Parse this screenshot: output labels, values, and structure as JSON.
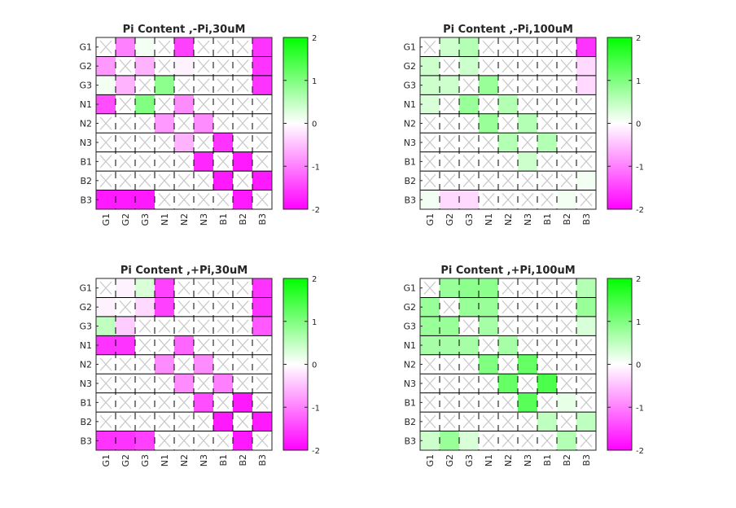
{
  "chart_data": [
    {
      "type": "heatmap",
      "title": "Pi Content ,-Pi,30uM",
      "rows": [
        "G1",
        "G2",
        "G3",
        "N1",
        "N2",
        "N3",
        "B1",
        "B2",
        "B3"
      ],
      "cols": [
        "G1",
        "G2",
        "G3",
        "N1",
        "N2",
        "N3",
        "B1",
        "B2",
        "B3"
      ],
      "clim": [
        -2,
        2
      ],
      "colorbar_ticks": [
        "2",
        "1",
        "0",
        "-1",
        "-2"
      ],
      "values": [
        [
          null,
          -1.0,
          0.1,
          null,
          -1.5,
          null,
          null,
          null,
          -1.6
        ],
        [
          -0.8,
          null,
          -0.6,
          null,
          -0.1,
          null,
          null,
          null,
          -1.6
        ],
        [
          0.1,
          -0.6,
          null,
          0.9,
          null,
          null,
          null,
          null,
          -1.6
        ],
        [
          -1.4,
          null,
          1.0,
          null,
          -0.9,
          null,
          null,
          null,
          null
        ],
        [
          null,
          null,
          null,
          -0.8,
          null,
          -0.9,
          null,
          null,
          null
        ],
        [
          null,
          null,
          null,
          null,
          -0.6,
          null,
          -1.6,
          null,
          null
        ],
        [
          null,
          null,
          null,
          null,
          null,
          -1.7,
          null,
          -1.8,
          null
        ],
        [
          null,
          null,
          null,
          null,
          null,
          null,
          -1.8,
          null,
          -1.8
        ],
        [
          -1.8,
          -1.8,
          -1.8,
          null,
          null,
          null,
          null,
          -1.8,
          null
        ]
      ]
    },
    {
      "type": "heatmap",
      "title": "Pi Content ,-Pi,100uM",
      "rows": [
        "G1",
        "G2",
        "G3",
        "N1",
        "N2",
        "N3",
        "B1",
        "B2",
        "B3"
      ],
      "cols": [
        "G1",
        "G2",
        "G3",
        "N1",
        "N2",
        "N3",
        "B1",
        "B2",
        "B3"
      ],
      "clim": [
        -2,
        2
      ],
      "colorbar_ticks": [
        "2",
        "1",
        "0",
        "-1",
        "-2"
      ],
      "values": [
        [
          null,
          0.4,
          0.6,
          null,
          null,
          null,
          null,
          null,
          -1.6
        ],
        [
          0.4,
          null,
          0.4,
          null,
          null,
          null,
          null,
          null,
          -0.3
        ],
        [
          0.4,
          0.4,
          null,
          0.8,
          null,
          null,
          null,
          null,
          -0.3
        ],
        [
          0.3,
          null,
          0.8,
          null,
          0.6,
          null,
          null,
          null,
          null
        ],
        [
          null,
          null,
          null,
          0.8,
          null,
          0.6,
          null,
          null,
          null
        ],
        [
          null,
          null,
          null,
          null,
          0.6,
          null,
          0.6,
          null,
          null
        ],
        [
          null,
          null,
          null,
          null,
          null,
          0.4,
          null,
          null,
          null
        ],
        [
          null,
          null,
          null,
          null,
          null,
          null,
          null,
          null,
          0.1
        ],
        [
          0.1,
          -0.3,
          -0.3,
          null,
          null,
          null,
          null,
          0.1,
          null
        ]
      ]
    },
    {
      "type": "heatmap",
      "title": "Pi Content ,+Pi,30uM",
      "rows": [
        "G1",
        "G2",
        "G3",
        "N1",
        "N2",
        "N3",
        "B1",
        "B2",
        "B3"
      ],
      "cols": [
        "G1",
        "G2",
        "G3",
        "N1",
        "N2",
        "N3",
        "B1",
        "B2",
        "B3"
      ],
      "clim": [
        -2,
        2
      ],
      "colorbar_ticks": [
        "2",
        "1",
        "0",
        "-1",
        "-2"
      ],
      "values": [
        [
          null,
          -0.1,
          0.3,
          -1.5,
          null,
          null,
          null,
          null,
          -1.6
        ],
        [
          -0.1,
          null,
          -0.3,
          -1.5,
          null,
          null,
          null,
          null,
          -1.6
        ],
        [
          0.5,
          -0.4,
          null,
          null,
          null,
          null,
          null,
          null,
          -1.3
        ],
        [
          -1.6,
          -1.6,
          null,
          null,
          -1.2,
          null,
          null,
          null,
          null
        ],
        [
          null,
          null,
          null,
          -0.9,
          null,
          -0.9,
          null,
          null,
          null
        ],
        [
          null,
          null,
          null,
          null,
          -0.9,
          null,
          -1.0,
          null,
          null
        ],
        [
          null,
          null,
          null,
          null,
          null,
          -1.4,
          null,
          -1.8,
          null
        ],
        [
          null,
          null,
          null,
          null,
          null,
          null,
          -1.8,
          null,
          -1.8
        ],
        [
          -1.6,
          -1.6,
          -1.5,
          null,
          null,
          null,
          null,
          -1.8,
          null
        ]
      ]
    },
    {
      "type": "heatmap",
      "title": "Pi Content ,+Pi,100uM",
      "rows": [
        "G1",
        "G2",
        "G3",
        "N1",
        "N2",
        "N3",
        "B1",
        "B2",
        "B3"
      ],
      "cols": [
        "G1",
        "G2",
        "G3",
        "N1",
        "N2",
        "N3",
        "B1",
        "B2",
        "B3"
      ],
      "clim": [
        -2,
        2
      ],
      "colorbar_ticks": [
        "2",
        "1",
        "0",
        "-1",
        "-2"
      ],
      "values": [
        [
          null,
          0.8,
          0.9,
          0.9,
          null,
          null,
          null,
          null,
          0.6
        ],
        [
          0.8,
          null,
          0.8,
          0.8,
          null,
          null,
          null,
          null,
          0.8
        ],
        [
          0.8,
          0.8,
          null,
          0.7,
          null,
          null,
          null,
          null,
          0.3
        ],
        [
          0.7,
          0.7,
          0.7,
          null,
          0.7,
          null,
          null,
          null,
          null
        ],
        [
          null,
          null,
          null,
          1.0,
          null,
          1.2,
          null,
          null,
          null
        ],
        [
          null,
          null,
          null,
          null,
          1.2,
          null,
          1.4,
          null,
          null
        ],
        [
          null,
          null,
          null,
          null,
          null,
          1.3,
          null,
          0.2,
          null
        ],
        [
          null,
          null,
          null,
          null,
          null,
          null,
          0.5,
          null,
          0.5
        ],
        [
          0.4,
          0.8,
          0.3,
          null,
          null,
          null,
          null,
          0.6,
          null
        ]
      ]
    }
  ]
}
